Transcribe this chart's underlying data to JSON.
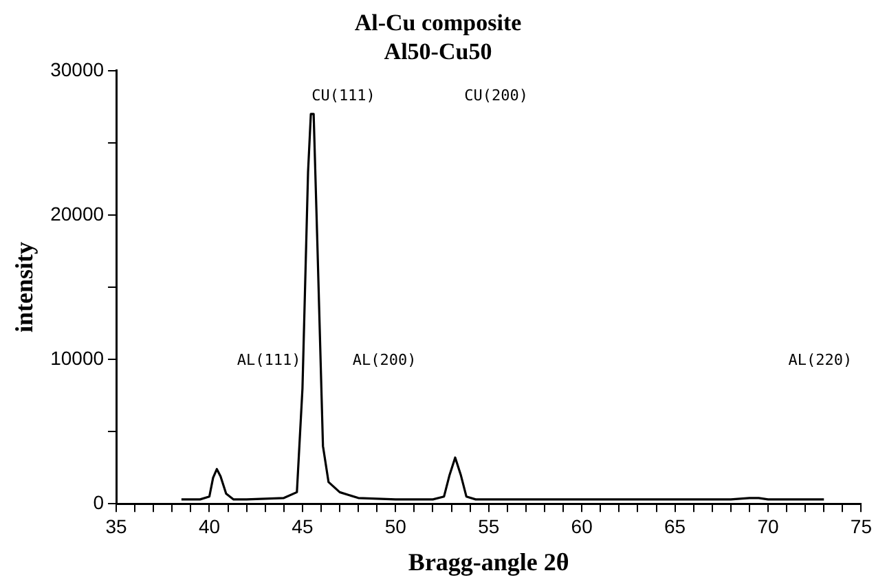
{
  "chart_data": {
    "type": "line",
    "title": "Al-Cu composite",
    "subtitle": "Al50-Cu50",
    "xlabel": "Bragg-angle 2θ",
    "ylabel": "intensity",
    "series": [
      {
        "color": "#000000",
        "x": [
          38.5,
          39.5,
          40.0,
          40.2,
          40.4,
          40.6,
          40.9,
          41.3,
          42,
          44,
          44.7,
          45.0,
          45.3,
          45.45,
          45.6,
          45.8,
          46.1,
          46.4,
          47,
          48,
          50,
          52,
          52.6,
          52.9,
          53.2,
          53.5,
          53.8,
          54.3,
          60,
          68,
          69,
          69.5,
          70,
          73
        ],
        "values": [
          300,
          300,
          500,
          1800,
          2400,
          1900,
          700,
          300,
          300,
          400,
          800,
          8000,
          23000,
          27000,
          27000,
          18000,
          4000,
          1500,
          800,
          400,
          300,
          300,
          500,
          2000,
          3200,
          2000,
          500,
          300,
          300,
          300,
          400,
          400,
          300,
          300
        ]
      }
    ],
    "xlim": [
      35,
      75
    ],
    "ylim": [
      0,
      30000
    ],
    "xticks": [
      35,
      {
        "value": 36,
        "label": null
      },
      {
        "value": 37,
        "label": null
      },
      {
        "value": 38,
        "label": null
      },
      {
        "value": 39,
        "label": null
      },
      40,
      {
        "value": 41,
        "label": null
      },
      {
        "value": 42,
        "label": null
      },
      {
        "value": 43,
        "label": null
      },
      {
        "value": 44,
        "label": null
      },
      45,
      {
        "value": 46,
        "label": null
      },
      {
        "value": 47,
        "label": null
      },
      {
        "value": 48,
        "label": null
      },
      {
        "value": 49,
        "label": null
      },
      50,
      {
        "value": 51,
        "label": null
      },
      {
        "value": 52,
        "label": null
      },
      {
        "value": 53,
        "label": null
      },
      {
        "value": 54,
        "label": null
      },
      55,
      {
        "value": 56,
        "label": null
      },
      {
        "value": 57,
        "label": null
      },
      {
        "value": 58,
        "label": null
      },
      {
        "value": 59,
        "label": null
      },
      60,
      {
        "value": 61,
        "label": null
      },
      {
        "value": 62,
        "label": null
      },
      {
        "value": 63,
        "label": null
      },
      {
        "value": 64,
        "label": null
      },
      65,
      {
        "value": 66,
        "label": null
      },
      {
        "value": 67,
        "label": null
      },
      {
        "value": 68,
        "label": null
      },
      {
        "value": 69,
        "label": null
      },
      70,
      {
        "value": 71,
        "label": null
      },
      {
        "value": 72,
        "label": null
      },
      {
        "value": 73,
        "label": null
      },
      {
        "value": 74,
        "label": null
      },
      75
    ],
    "yticks": [
      0,
      {
        "value": 5000,
        "label": null
      },
      10000,
      {
        "value": 15000,
        "label": null
      },
      20000,
      {
        "value": 25000,
        "label": null
      },
      30000
    ],
    "annotations": [
      "CU(111)",
      "CU(200)",
      "AL(111)",
      "AL(200)",
      "AL(220)"
    ],
    "grid": false,
    "legend": false,
    "marker": "none",
    "line_style": "solid"
  }
}
